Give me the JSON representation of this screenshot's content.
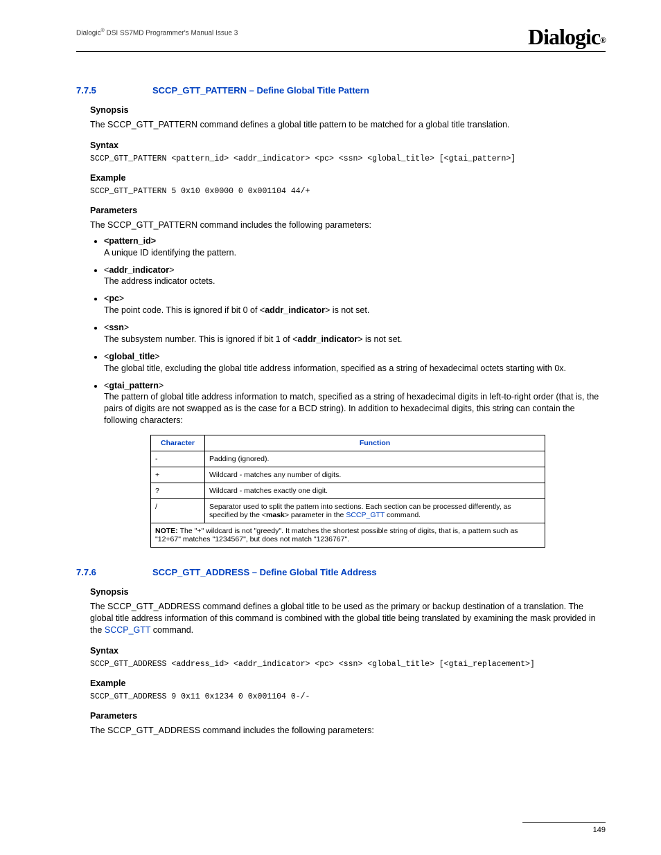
{
  "header": {
    "doc_title_pre": "Dialogic",
    "doc_title_post": " DSI SS7MD Programmer's Manual Issue 3",
    "logo_text": "Dialogic",
    "logo_reg": "®"
  },
  "section1": {
    "number": "7.7.5",
    "title": "SCCP_GTT_PATTERN – Define Global Title Pattern",
    "synopsis_h": "Synopsis",
    "synopsis_t": "The SCCP_GTT_PATTERN command defines a global title pattern to be matched for a global title translation.",
    "syntax_h": "Syntax",
    "syntax_c": "SCCP_GTT_PATTERN <pattern_id> <addr_indicator> <pc> <ssn> <global_title> [<gtai_pattern>]",
    "example_h": "Example",
    "example_c": "SCCP_GTT_PATTERN 5 0x10 0x0000 0 0x001104 44/+",
    "params_h": "Parameters",
    "params_intro": "The SCCP_GTT_PATTERN command includes the following parameters:",
    "params": [
      {
        "name": "<pattern_id>",
        "desc": "A unique ID identifying the pattern."
      },
      {
        "name_pre": "<",
        "name_b": "addr_indicator",
        "name_post": ">",
        "desc": "The address indicator octets."
      },
      {
        "name_pre": "<",
        "name_b": "pc",
        "name_post": ">",
        "desc_pre": "The point code. This is ignored if bit 0 of <",
        "desc_b": "addr_indicator",
        "desc_post": "> is not set."
      },
      {
        "name_pre": "<",
        "name_b": "ssn",
        "name_post": ">",
        "desc_pre": "The subsystem number. This is ignored if bit 1 of <",
        "desc_b": "addr_indicator",
        "desc_post": "> is not set."
      },
      {
        "name_pre": "<",
        "name_b": "global_title",
        "name_post": ">",
        "desc": "The global title, excluding the global title address information, specified as a string of hexadecimal octets starting with 0x."
      },
      {
        "name_pre": "<",
        "name_b": "gtai_pattern",
        "name_post": ">",
        "desc": "The pattern of global title address information to match, specified as a string of hexadecimal digits in left-to-right order (that is, the pairs of digits are not swapped as is the case for a BCD string). In addition to hexadecimal digits, this string can contain the following characters:"
      }
    ],
    "table": {
      "col1": "Character",
      "col2": "Function",
      "rows": [
        {
          "c": "-",
          "f": "Padding (ignored)."
        },
        {
          "c": "+",
          "f": "Wildcard - matches any number of digits."
        },
        {
          "c": "?",
          "f": "Wildcard - matches exactly one digit."
        }
      ],
      "row4_c": "/",
      "row4_pre": "Separator used to split the pattern into sections. Each section can be processed differently, as specified by the <",
      "row4_b": "mask",
      "row4_mid": "> parameter in the ",
      "row4_link": "SCCP_GTT",
      "row4_post": " command.",
      "note_label": "NOTE:  ",
      "note_text": "The \"+\" wildcard is not \"greedy\". It matches the shortest possible string of digits, that is, a pattern such as \"12+67\" matches \"1234567\", but does not match \"1236767\"."
    }
  },
  "section2": {
    "number": "7.7.6",
    "title": "SCCP_GTT_ADDRESS – Define Global Title Address",
    "synopsis_h": "Synopsis",
    "synopsis_pre": "The SCCP_GTT_ADDRESS command defines a global title to be used as the primary or backup destination of a translation. The global title address information of this command is combined with the global title being translated by examining the mask provided in the ",
    "synopsis_link": "SCCP_GTT",
    "synopsis_post": " command.",
    "syntax_h": "Syntax",
    "syntax_c": "SCCP_GTT_ADDRESS <address_id> <addr_indicator> <pc> <ssn> <global_title> [<gtai_replacement>]",
    "example_h": "Example",
    "example_c": "SCCP_GTT_ADDRESS 9 0x11 0x1234 0 0x001104 0-/-",
    "params_h": "Parameters",
    "params_intro": "The SCCP_GTT_ADDRESS command includes the following parameters:"
  },
  "footer": {
    "page_no": "149"
  }
}
